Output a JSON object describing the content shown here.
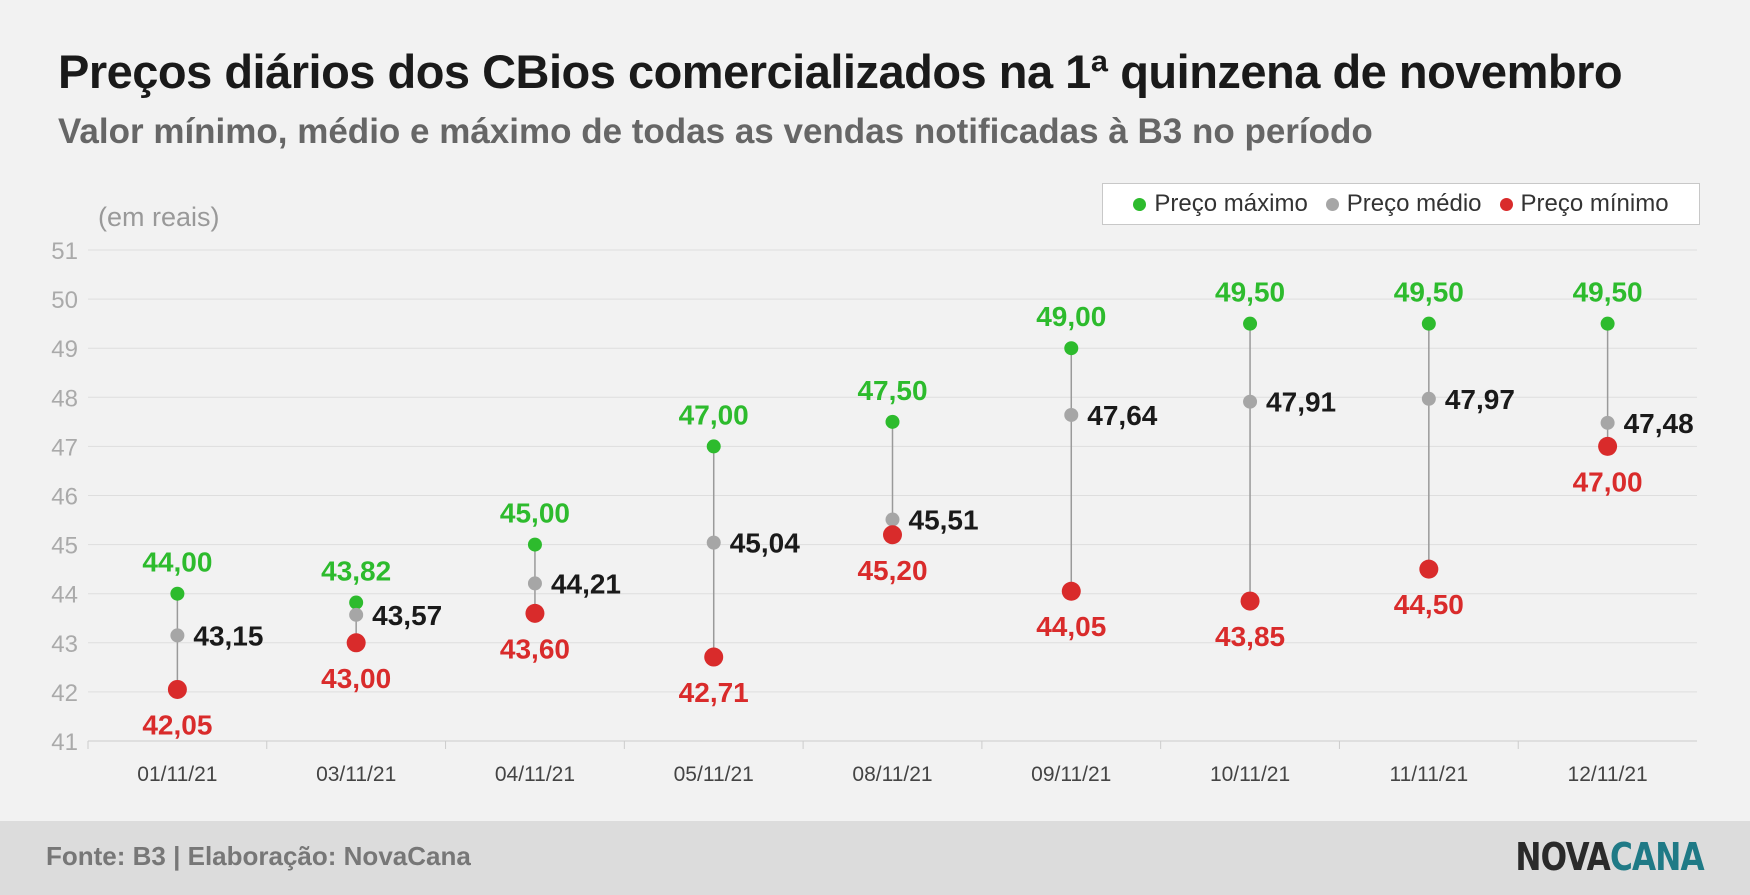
{
  "header": {
    "title": "Preços diários dos CBios comercializados na 1ª quinzena de novembro",
    "subtitle": "Valor mínimo, médio e máximo de todas as vendas notificadas à B3 no período"
  },
  "legend": {
    "items": [
      {
        "label": "Preço máximo",
        "color": "#2dbb2d"
      },
      {
        "label": "Preço médio",
        "color": "#a6a6a6"
      },
      {
        "label": "Preço mínimo",
        "color": "#d92b2b"
      }
    ]
  },
  "footer": {
    "source": "Fonte: B3 | Elaboração: NovaCana",
    "logo_part1": "NOVA",
    "logo_part2": "CANA"
  },
  "chart_data": {
    "type": "scatter",
    "ylabel": "(em reais)",
    "ylim": [
      41,
      51
    ],
    "yticks": [
      41,
      42,
      43,
      44,
      45,
      46,
      47,
      48,
      49,
      50,
      51
    ],
    "grid": true,
    "legend_position": "top-right",
    "categories": [
      "01/11/21",
      "03/11/21",
      "04/11/21",
      "05/11/21",
      "08/11/21",
      "09/11/21",
      "10/11/21",
      "11/11/21",
      "12/11/21"
    ],
    "series": [
      {
        "name": "Preço máximo",
        "color": "#2dbb2d",
        "label_color": "#2dbb2d",
        "values": [
          44.0,
          43.82,
          45.0,
          47.0,
          47.5,
          49.0,
          49.5,
          49.5,
          49.5
        ],
        "labels": [
          "44,00",
          "43,82",
          "45,00",
          "47,00",
          "47,50",
          "49,00",
          "49,50",
          "49,50",
          "49,50"
        ]
      },
      {
        "name": "Preço médio",
        "color": "#a6a6a6",
        "label_color": "#1a1a1a",
        "values": [
          43.15,
          43.57,
          44.21,
          45.04,
          45.51,
          47.64,
          47.91,
          47.97,
          47.48
        ],
        "labels": [
          "43,15",
          "43,57",
          "44,21",
          "45,04",
          "45,51",
          "47,64",
          "47,91",
          "47,97",
          "47,48"
        ]
      },
      {
        "name": "Preço mínimo",
        "color": "#d92b2b",
        "label_color": "#d92b2b",
        "values": [
          42.05,
          43.0,
          43.6,
          42.71,
          45.2,
          44.05,
          43.85,
          44.5,
          47.0
        ],
        "labels": [
          "42,05",
          "43,00",
          "43,60",
          "42,71",
          "45,20",
          "44,05",
          "43,85",
          "44,50",
          "47,00"
        ]
      }
    ]
  }
}
